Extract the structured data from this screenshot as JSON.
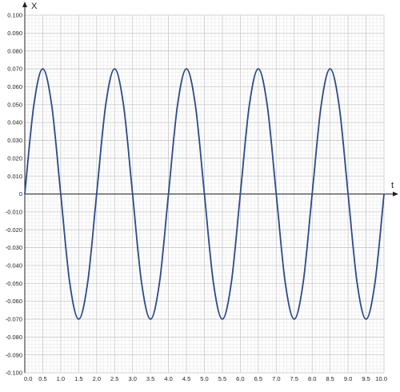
{
  "chart_data": {
    "type": "line",
    "title": "",
    "xlabel": "t",
    "ylabel": "X",
    "xlim": [
      0,
      10
    ],
    "ylim": [
      -0.1,
      0.1
    ],
    "x_ticks": [
      "0.0",
      "0.5",
      "1.0",
      "1.5",
      "2.0",
      "2.5",
      "3.0",
      "3.5",
      "4.0",
      "4.5",
      "5.0",
      "5.5",
      "6.0",
      "6.5",
      "7.0",
      "7.5",
      "8.0",
      "8.5",
      "9.0",
      "9.5",
      "10.0"
    ],
    "y_ticks": [
      "0.100",
      "0.090",
      "0.080",
      "0.070",
      "0.060",
      "0.050",
      "0.040",
      "0.030",
      "0.020",
      "0.010",
      "0",
      "-0.010",
      "-0.020",
      "-0.030",
      "-0.040",
      "-0.050",
      "-0.060",
      "-0.070",
      "-0.080",
      "-0.090",
      "-0.100"
    ],
    "grid": true,
    "series": [
      {
        "x": [
          0,
          0.25,
          0.5,
          0.75,
          1.0,
          1.25,
          1.5,
          1.75,
          2.0,
          2.25,
          2.5,
          2.75,
          3.0,
          3.25,
          3.5,
          3.75,
          4.0,
          4.25,
          4.5,
          4.75,
          5.0,
          5.25,
          5.5,
          5.75,
          6.0,
          6.25,
          6.5,
          6.75,
          7.0,
          7.25,
          7.5,
          7.75,
          8.0,
          8.25,
          8.5,
          8.75,
          9.0,
          9.25,
          9.5,
          9.75,
          10.0
        ],
        "y": [
          0,
          0.0495,
          0.07,
          0.0495,
          0,
          -0.0495,
          -0.07,
          -0.0495,
          0,
          0.0495,
          0.07,
          0.0495,
          0,
          -0.0495,
          -0.07,
          -0.0495,
          0,
          0.0495,
          0.07,
          0.0495,
          0,
          -0.0495,
          -0.07,
          -0.0495,
          0,
          0.0495,
          0.07,
          0.0495,
          0,
          -0.0495,
          -0.07,
          -0.0495,
          0,
          0.0495,
          0.07,
          0.0495,
          0,
          -0.0495,
          -0.07,
          -0.0495,
          0
        ],
        "color": "#2b4a8b"
      }
    ],
    "colors": {
      "grid_major": "#c8c8c8",
      "grid_minor": "#e6e6e6",
      "axis": "#222222",
      "line": "#2b4a8b"
    }
  }
}
